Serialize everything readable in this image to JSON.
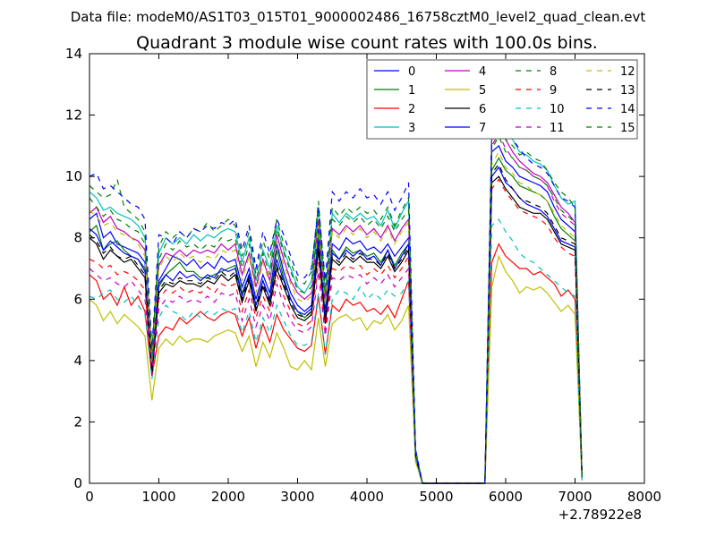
{
  "chart_data": {
    "type": "line",
    "suptitle": "Data file: modeM0/AS1T03_015T01_9000002486_16758cztM0_level2_quad_clean.evt",
    "title": "Quadrant 3 module wise count rates with 100.0s bins.",
    "xlabel": "",
    "ylabel": "",
    "x_offset_label": "+2.78922e8",
    "xlim": [
      0,
      8000
    ],
    "ylim": [
      0,
      14
    ],
    "xticks": [
      0,
      1000,
      2000,
      3000,
      4000,
      5000,
      6000,
      7000,
      8000
    ],
    "yticks": [
      0,
      2,
      4,
      6,
      8,
      10,
      12,
      14
    ],
    "grid": false,
    "legend_position": "top-right",
    "legend_columns": 4,
    "x": [
      0,
      100,
      200,
      300,
      400,
      500,
      600,
      700,
      800,
      900,
      1000,
      1100,
      1200,
      1300,
      1400,
      1500,
      1600,
      1700,
      1800,
      1900,
      2000,
      2100,
      2200,
      2300,
      2400,
      2500,
      2600,
      2700,
      2800,
      2900,
      3000,
      3100,
      3200,
      3300,
      3400,
      3500,
      3600,
      3700,
      3800,
      3900,
      4000,
      4100,
      4200,
      4300,
      4400,
      4500,
      4600,
      4700,
      4800,
      5700,
      5800,
      5900,
      6000,
      6100,
      6200,
      6300,
      6400,
      6500,
      6600,
      6700,
      6800,
      6900,
      7000,
      7100
    ],
    "series": [
      {
        "name": "0",
        "color": "#0000ff",
        "dash": "solid",
        "values": [
          8.6,
          8.8,
          8.0,
          8.2,
          7.8,
          7.7,
          7.6,
          7.5,
          7.2,
          4.0,
          6.6,
          7.0,
          7.4,
          7.3,
          7.1,
          7.3,
          7.0,
          7.2,
          7.0,
          7.4,
          7.2,
          7.3,
          6.4,
          7.0,
          6.0,
          6.8,
          6.2,
          7.8,
          6.9,
          6.2,
          5.8,
          5.6,
          5.8,
          8.3,
          5.6,
          7.8,
          7.6,
          8.0,
          7.8,
          7.9,
          7.6,
          7.7,
          7.5,
          7.8,
          7.4,
          7.7,
          8.0,
          1.0,
          0.0,
          0.0,
          10.8,
          11.0,
          10.5,
          10.3,
          10.0,
          9.9,
          9.8,
          9.7,
          9.5,
          9.0,
          8.6,
          8.4,
          8.2,
          0.2
        ]
      },
      {
        "name": "1",
        "color": "#008000",
        "dash": "solid",
        "values": [
          8.2,
          8.4,
          7.6,
          7.8,
          7.9,
          7.6,
          7.4,
          7.3,
          7.0,
          3.7,
          6.4,
          6.8,
          7.0,
          7.2,
          6.9,
          6.9,
          6.7,
          6.7,
          6.8,
          6.9,
          7.0,
          7.1,
          6.2,
          6.8,
          5.8,
          6.6,
          6.0,
          7.6,
          6.7,
          6.0,
          5.6,
          5.4,
          5.6,
          8.1,
          5.4,
          7.6,
          7.3,
          7.7,
          7.5,
          7.6,
          7.4,
          7.5,
          7.2,
          7.6,
          7.1,
          7.5,
          7.8,
          0.9,
          0.0,
          0.0,
          10.2,
          10.6,
          10.2,
          10.0,
          9.7,
          9.6,
          9.5,
          9.4,
          9.2,
          8.7,
          8.3,
          8.1,
          7.9,
          0.2
        ]
      },
      {
        "name": "2",
        "color": "#ff0000",
        "dash": "solid",
        "values": [
          6.8,
          6.6,
          6.0,
          6.2,
          5.8,
          6.4,
          5.8,
          6.1,
          5.6,
          3.5,
          4.8,
          5.1,
          5.0,
          5.4,
          5.2,
          5.4,
          5.6,
          5.4,
          5.3,
          5.5,
          5.6,
          5.5,
          4.8,
          5.4,
          4.4,
          5.2,
          4.6,
          5.5,
          5.0,
          4.7,
          4.4,
          4.3,
          4.5,
          6.1,
          4.2,
          5.8,
          5.6,
          6.0,
          5.8,
          5.9,
          5.6,
          5.7,
          5.5,
          5.8,
          5.4,
          6.0,
          6.6,
          0.8,
          0.0,
          0.0,
          7.2,
          7.8,
          7.4,
          7.2,
          7.0,
          7.0,
          6.8,
          6.9,
          6.7,
          6.5,
          6.1,
          6.3,
          6.0,
          0.1
        ]
      },
      {
        "name": "3",
        "color": "#00bfbf",
        "dash": "solid",
        "values": [
          9.5,
          9.3,
          8.9,
          9.0,
          8.8,
          8.7,
          8.6,
          8.4,
          8.0,
          4.1,
          7.5,
          8.0,
          7.8,
          8.0,
          7.8,
          8.1,
          7.9,
          8.1,
          8.0,
          8.2,
          8.3,
          8.2,
          7.2,
          8.0,
          6.6,
          7.6,
          7.0,
          8.4,
          7.6,
          7.0,
          6.4,
          6.2,
          6.6,
          9.0,
          6.2,
          8.8,
          8.5,
          8.8,
          8.6,
          8.8,
          8.6,
          8.7,
          8.4,
          8.9,
          8.3,
          8.8,
          9.2,
          1.1,
          0.0,
          0.0,
          11.5,
          12.0,
          11.4,
          11.2,
          10.8,
          10.7,
          10.5,
          10.4,
          10.2,
          9.7,
          9.3,
          9.1,
          9.2,
          0.2
        ]
      },
      {
        "name": "4",
        "color": "#bf00bf",
        "dash": "solid",
        "values": [
          8.8,
          9.0,
          8.5,
          8.7,
          8.3,
          8.2,
          8.0,
          7.9,
          7.6,
          4.2,
          7.1,
          7.5,
          7.4,
          7.6,
          7.4,
          7.6,
          7.5,
          7.6,
          7.5,
          7.8,
          7.6,
          7.8,
          6.8,
          7.5,
          6.4,
          7.3,
          6.6,
          8.1,
          7.3,
          6.6,
          6.2,
          6.0,
          6.2,
          8.6,
          5.9,
          8.3,
          8.1,
          8.4,
          8.2,
          8.4,
          8.1,
          8.3,
          8.0,
          8.4,
          7.9,
          8.3,
          8.6,
          1.0,
          0.0,
          0.0,
          11.2,
          12.2,
          11.2,
          10.8,
          10.5,
          10.3,
          10.1,
          10.0,
          9.8,
          9.4,
          9.0,
          8.8,
          8.5,
          0.2
        ]
      },
      {
        "name": "5",
        "color": "#bfbf00",
        "dash": "solid",
        "values": [
          6.0,
          5.8,
          5.3,
          5.6,
          5.2,
          5.5,
          5.3,
          5.1,
          4.8,
          2.7,
          4.4,
          4.7,
          4.5,
          4.8,
          4.6,
          4.7,
          4.7,
          4.6,
          4.8,
          4.9,
          5.0,
          4.9,
          4.3,
          4.8,
          3.8,
          4.6,
          4.1,
          4.9,
          4.4,
          3.8,
          3.7,
          4.0,
          3.7,
          5.4,
          3.8,
          5.2,
          5.4,
          5.5,
          5.3,
          5.4,
          5.0,
          5.3,
          5.2,
          5.5,
          5.0,
          5.3,
          5.8,
          0.7,
          0.0,
          0.0,
          6.4,
          7.4,
          6.9,
          6.6,
          6.2,
          6.4,
          6.3,
          6.4,
          6.2,
          5.9,
          5.6,
          5.8,
          5.5,
          0.1
        ]
      },
      {
        "name": "6",
        "color": "#000000",
        "dash": "solid",
        "values": [
          8.0,
          7.8,
          7.3,
          7.6,
          7.4,
          7.2,
          7.3,
          7.0,
          6.7,
          3.5,
          6.2,
          6.5,
          6.4,
          6.6,
          6.5,
          6.5,
          6.4,
          6.6,
          6.5,
          6.8,
          6.6,
          6.8,
          5.9,
          6.6,
          5.6,
          6.4,
          5.8,
          7.0,
          6.4,
          5.8,
          5.4,
          5.3,
          5.5,
          7.6,
          5.2,
          7.3,
          7.1,
          7.4,
          7.2,
          7.4,
          7.2,
          7.2,
          7.0,
          7.4,
          6.9,
          7.2,
          7.6,
          0.9,
          0.0,
          0.0,
          9.8,
          10.0,
          9.6,
          9.3,
          9.0,
          8.9,
          8.8,
          8.8,
          8.6,
          8.2,
          7.8,
          7.7,
          7.6,
          0.2
        ]
      },
      {
        "name": "7",
        "color": "#0000ff",
        "dash": "solid",
        "values": [
          8.3,
          8.1,
          7.6,
          7.9,
          7.7,
          7.5,
          7.4,
          7.3,
          6.9,
          3.6,
          6.5,
          6.8,
          6.6,
          6.9,
          6.7,
          6.8,
          6.6,
          6.8,
          6.7,
          7.0,
          6.9,
          7.0,
          6.1,
          6.8,
          5.8,
          6.6,
          6.0,
          7.3,
          6.6,
          6.0,
          5.6,
          5.5,
          5.7,
          7.9,
          5.4,
          7.5,
          7.3,
          7.6,
          7.4,
          7.6,
          7.3,
          7.4,
          7.1,
          7.6,
          7.0,
          7.4,
          7.8,
          0.9,
          0.0,
          0.0,
          10.0,
          10.3,
          9.8,
          9.6,
          9.3,
          9.1,
          9.0,
          8.9,
          8.7,
          8.3,
          7.9,
          7.8,
          7.7,
          0.2
        ]
      },
      {
        "name": "8",
        "color": "#008000",
        "dash": "dashed",
        "values": [
          9.7,
          9.5,
          9.3,
          9.4,
          9.9,
          9.0,
          8.8,
          8.6,
          8.2,
          4.3,
          7.7,
          8.2,
          8.0,
          8.2,
          8.0,
          8.3,
          8.2,
          8.5,
          8.2,
          8.4,
          8.6,
          8.4,
          7.4,
          8.2,
          6.8,
          7.9,
          7.3,
          8.6,
          7.8,
          7.2,
          6.6,
          6.5,
          6.9,
          9.2,
          6.4,
          9.0,
          8.7,
          9.0,
          8.8,
          9.0,
          8.8,
          8.9,
          8.6,
          9.0,
          8.4,
          8.9,
          9.3,
          1.1,
          0.0,
          0.0,
          11.3,
          11.8,
          11.2,
          11.0,
          10.7,
          10.8,
          10.6,
          10.5,
          10.2,
          9.8,
          9.5,
          9.3,
          9.0,
          0.2
        ]
      },
      {
        "name": "9",
        "color": "#ff0000",
        "dash": "dashed",
        "values": [
          7.3,
          7.2,
          7.0,
          7.1,
          6.8,
          6.9,
          6.8,
          6.6,
          6.3,
          3.6,
          6.0,
          6.3,
          6.2,
          6.4,
          6.2,
          6.3,
          6.2,
          6.4,
          6.2,
          6.5,
          6.4,
          6.5,
          5.6,
          6.3,
          5.4,
          6.1,
          5.6,
          6.8,
          6.1,
          5.6,
          5.2,
          5.1,
          5.3,
          7.2,
          5.0,
          7.0,
          6.9,
          7.1,
          7.0,
          7.1,
          6.8,
          7.0,
          6.8,
          7.1,
          6.7,
          7.0,
          7.4,
          0.9,
          0.0,
          0.0,
          9.6,
          9.9,
          9.5,
          9.2,
          8.9,
          8.8,
          8.7,
          8.6,
          8.4,
          8.0,
          7.7,
          7.5,
          7.4,
          0.2
        ]
      },
      {
        "name": "10",
        "color": "#00bfbf",
        "dash": "dashed",
        "values": [
          6.1,
          6.0,
          6.2,
          6.3,
          6.0,
          5.9,
          6.1,
          5.8,
          5.5,
          3.4,
          5.4,
          5.8,
          5.6,
          5.5,
          5.3,
          5.6,
          5.4,
          5.6,
          5.5,
          5.7,
          5.6,
          5.7,
          4.9,
          5.6,
          4.6,
          5.4,
          4.9,
          5.8,
          5.3,
          4.8,
          4.5,
          4.5,
          4.6,
          6.2,
          4.2,
          6.0,
          6.3,
          6.2,
          6.0,
          6.4,
          6.0,
          6.2,
          6.0,
          6.3,
          6.1,
          6.2,
          6.6,
          0.8,
          0.0,
          0.0,
          8.4,
          8.6,
          8.2,
          7.9,
          7.5,
          7.3,
          7.2,
          7.0,
          6.8,
          6.6,
          6.4,
          6.2,
          6.1,
          0.1
        ]
      },
      {
        "name": "11",
        "color": "#bf00bf",
        "dash": "dashed",
        "values": [
          7.0,
          6.8,
          6.6,
          6.7,
          6.5,
          6.4,
          6.6,
          6.3,
          6.0,
          3.5,
          5.7,
          6.0,
          5.9,
          6.1,
          5.9,
          6.0,
          5.9,
          6.1,
          5.9,
          6.2,
          6.1,
          6.2,
          5.3,
          6.0,
          5.1,
          5.8,
          5.3,
          6.5,
          5.8,
          5.3,
          5.0,
          4.9,
          5.1,
          6.9,
          4.8,
          6.7,
          6.6,
          6.8,
          6.7,
          6.8,
          6.5,
          6.7,
          6.5,
          6.8,
          6.4,
          6.7,
          7.0,
          0.9,
          0.0,
          0.0,
          11.0,
          11.4,
          10.9,
          10.6,
          10.3,
          10.2,
          10.0,
          9.9,
          9.7,
          9.2,
          8.8,
          8.6,
          8.4,
          0.2
        ]
      },
      {
        "name": "12",
        "color": "#bfbf00",
        "dash": "dashed",
        "values": [
          8.9,
          8.7,
          8.4,
          8.5,
          8.2,
          8.1,
          8.0,
          7.8,
          7.4,
          4.0,
          7.0,
          7.4,
          7.2,
          7.5,
          7.3,
          7.4,
          7.2,
          7.4,
          7.3,
          7.6,
          7.5,
          7.6,
          6.6,
          7.4,
          6.2,
          7.2,
          6.5,
          7.9,
          7.1,
          6.5,
          6.0,
          5.9,
          6.1,
          8.4,
          5.8,
          8.2,
          8.0,
          8.3,
          8.1,
          8.3,
          8.0,
          8.2,
          7.9,
          8.3,
          7.8,
          8.2,
          8.5,
          1.0,
          0.0,
          0.0,
          10.4,
          10.8,
          10.3,
          10.1,
          9.8,
          9.7,
          9.5,
          9.4,
          9.2,
          8.8,
          8.4,
          8.2,
          8.0,
          0.2
        ]
      },
      {
        "name": "13",
        "color": "#000000",
        "dash": "dashed",
        "values": [
          8.1,
          7.9,
          7.5,
          7.7,
          7.4,
          7.3,
          7.4,
          7.1,
          6.8,
          3.6,
          6.3,
          6.6,
          6.5,
          6.7,
          6.6,
          6.6,
          6.5,
          6.7,
          6.6,
          6.9,
          6.7,
          6.9,
          6.0,
          6.7,
          5.7,
          6.5,
          5.9,
          7.1,
          6.5,
          5.9,
          5.5,
          5.4,
          5.6,
          7.7,
          5.3,
          7.4,
          7.2,
          7.5,
          7.3,
          7.5,
          7.3,
          7.3,
          7.1,
          7.5,
          7.0,
          7.3,
          7.7,
          0.9,
          0.0,
          0.0,
          10.1,
          10.4,
          9.9,
          9.6,
          9.3,
          9.2,
          9.1,
          9.0,
          8.8,
          8.4,
          8.0,
          7.9,
          7.8,
          0.2
        ]
      },
      {
        "name": "14",
        "color": "#0000ff",
        "dash": "dashed",
        "values": [
          10.0,
          10.1,
          9.6,
          9.7,
          9.5,
          9.3,
          9.1,
          9.0,
          8.6,
          4.4,
          8.1,
          8.0,
          7.8,
          8.2,
          8.0,
          8.3,
          8.2,
          8.4,
          8.3,
          8.5,
          8.4,
          8.6,
          7.6,
          8.4,
          7.0,
          8.2,
          7.5,
          8.6,
          8.1,
          7.4,
          6.8,
          6.7,
          7.0,
          9.0,
          6.6,
          9.5,
          9.2,
          9.5,
          9.3,
          9.6,
          9.3,
          9.4,
          9.1,
          9.5,
          8.9,
          9.3,
          9.8,
          1.1,
          0.0,
          0.0,
          11.6,
          11.9,
          11.4,
          11.2,
          10.9,
          10.6,
          10.4,
          10.3,
          10.1,
          9.7,
          9.3,
          9.2,
          9.0,
          0.2
        ]
      },
      {
        "name": "15",
        "color": "#008000",
        "dash": "dashed",
        "values": [
          9.3,
          9.0,
          8.7,
          8.9,
          8.6,
          8.5,
          8.3,
          8.2,
          7.8,
          4.2,
          7.3,
          7.8,
          7.6,
          7.9,
          7.7,
          7.8,
          7.6,
          7.8,
          7.7,
          8.0,
          7.9,
          8.0,
          7.0,
          7.8,
          6.6,
          7.5,
          6.8,
          8.3,
          7.5,
          6.9,
          6.3,
          6.2,
          6.4,
          8.8,
          6.1,
          8.6,
          8.4,
          8.7,
          8.5,
          8.7,
          8.4,
          8.6,
          8.3,
          8.7,
          8.2,
          8.6,
          8.9,
          1.0,
          0.0,
          0.0,
          10.9,
          11.3,
          10.8,
          10.6,
          10.3,
          10.2,
          10.0,
          9.9,
          9.7,
          9.3,
          8.9,
          8.7,
          8.5,
          0.2
        ]
      }
    ]
  }
}
